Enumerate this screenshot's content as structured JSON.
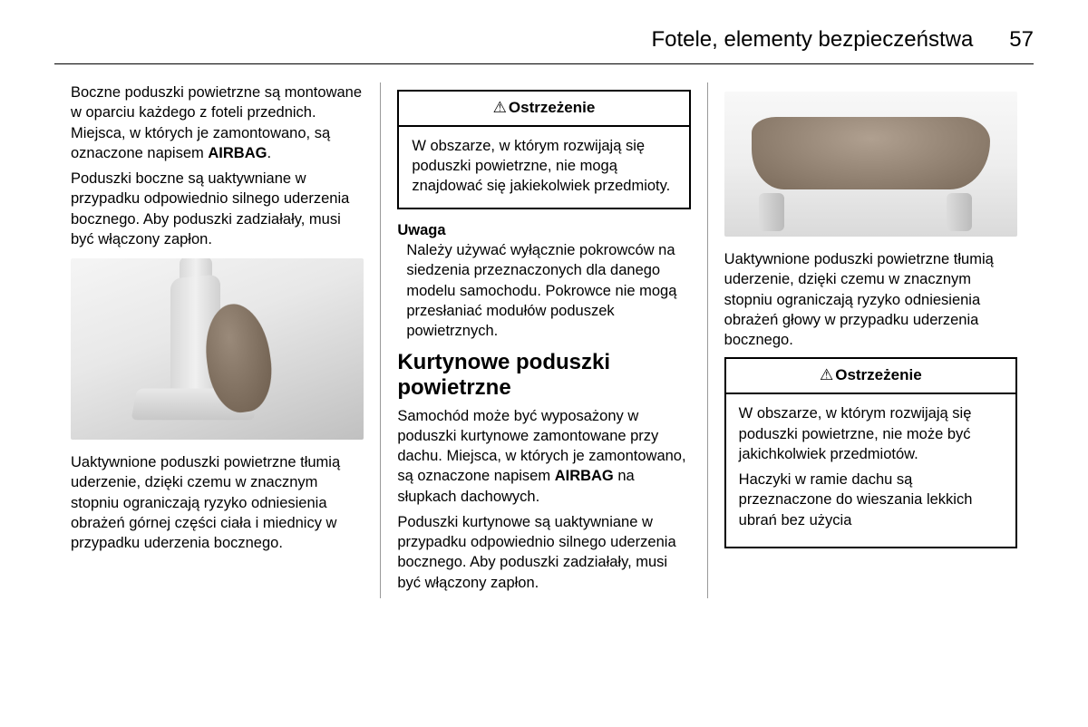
{
  "header": {
    "title": "Fotele, elementy bezpieczeństwa",
    "page_number": "57"
  },
  "col1": {
    "p1_pre": "Boczne poduszki powietrzne są montowane w oparciu każdego z foteli przednich. Miejsca, w których je zamontowano, są oznaczone napisem ",
    "p1_bold": "AIRBAG",
    "p1_post": ".",
    "p2": "Poduszki boczne są uaktywniane w przypadku odpowiednio silnego uderzenia bocznego. Aby poduszki zadziałały, musi być włączony zapłon.",
    "p3": "Uaktywnione poduszki powietrzne tłumią uderzenie, dzięki czemu w znacznym stopniu ograniczają ryzyko odniesienia obrażeń górnej części ciała i miednicy w przypadku uderzenia bocznego."
  },
  "col2": {
    "warning1": {
      "title": "Ostrzeżenie",
      "body": "W obszarze, w którym rozwijają się poduszki powietrzne, nie mogą znajdować się jakiekolwiek przedmioty."
    },
    "notice": {
      "title": "Uwaga",
      "body": "Należy używać wyłącznie pokrowców na siedzenia przeznaczonych dla danego modelu samochodu. Pokrowce nie mogą przesłaniać modułów poduszek powietrznych."
    },
    "section_heading": "Kurtynowe poduszki powietrzne",
    "p1_pre": "Samochód może być wyposażony w poduszki kurtynowe zamontowane przy dachu. Miejsca, w których je zamontowano, są oznaczone napisem ",
    "p1_bold": "AIRBAG",
    "p1_post": " na słupkach dachowych.",
    "p2": "Poduszki kurtynowe są uaktywniane w przypadku odpowiednio silnego uderzenia bocznego. Aby poduszki zadziałały, musi być włączony zapłon."
  },
  "col3": {
    "p1": "Uaktywnione poduszki powietrzne tłumią uderzenie, dzięki czemu w znacznym stopniu ograniczają ryzyko odniesienia obrażeń głowy w przypadku uderzenia bocznego.",
    "warning2": {
      "title": "Ostrzeżenie",
      "body_p1": "W obszarze, w którym rozwijają się poduszki powietrzne, nie może być jakichkolwiek przedmiotów.",
      "body_p2": "Haczyki w ramie dachu są przeznaczone do wieszania lekkich ubrań bez użycia"
    }
  }
}
